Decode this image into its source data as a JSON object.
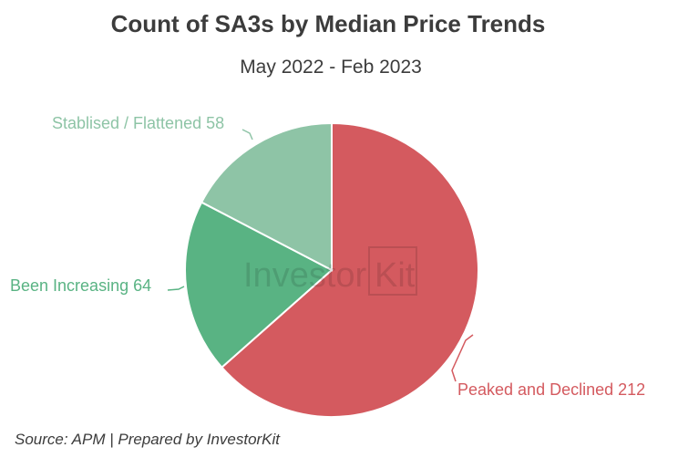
{
  "chart_data": {
    "type": "pie",
    "title": "Count of SA3s by Median Price Trends",
    "subtitle": "May 2022 - Feb 2023",
    "slices": [
      {
        "label": "Peaked and Declined",
        "value": 212,
        "color": "#d45a5f"
      },
      {
        "label": "Been Increasing",
        "value": 64,
        "color": "#59b383"
      },
      {
        "label": "Stablised / Flattened",
        "value": 58,
        "color": "#8ec4a6"
      }
    ],
    "slice_labels": [
      "Peaked and Declined 212",
      "Been Increasing 64",
      "Stablised / Flattened 58"
    ],
    "start_angle": "12 o'clock",
    "direction": "clockwise"
  },
  "source": "Source: APM | Prepared by InvestorKit",
  "watermark": {
    "text_part1": "Invest",
    "text_part2": "or",
    "text_part3": "Kit"
  }
}
